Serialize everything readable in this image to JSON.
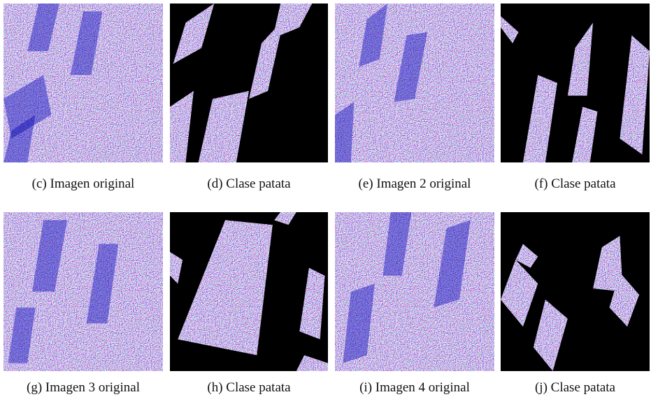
{
  "panels": [
    {
      "caption": "(c) Imagen original"
    },
    {
      "caption": "(d) Clase patata"
    },
    {
      "caption": "(e) Imagen 2 original"
    },
    {
      "caption": "(f) Clase patata"
    },
    {
      "caption": "(g) Imagen 3 original"
    },
    {
      "caption": "(h) Clase patata"
    },
    {
      "caption": "(i) Imagen 4 original"
    },
    {
      "caption": "(j) Clase patata"
    }
  ]
}
